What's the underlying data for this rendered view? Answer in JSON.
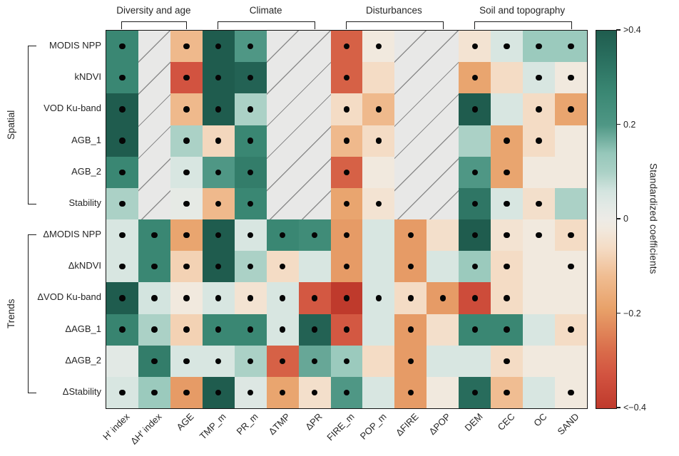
{
  "colorbar": {
    "title": "Standardized coefficients",
    "ticks": [
      ">0.4",
      "0.2",
      "0",
      "−0.2",
      "<−0.4"
    ]
  },
  "chart_data": {
    "type": "heatmap",
    "rows": [
      "MODIS NPP",
      "kNDVI",
      "VOD Ku-band",
      "AGB_1",
      "AGB_2",
      "Stability",
      "ΔMODIS NPP",
      "ΔkNDVI",
      "ΔVOD Ku-band",
      "ΔAGB_1",
      "ΔAGB_2",
      "ΔStability"
    ],
    "columns": [
      "H′ index",
      "ΔH′ index",
      "AGE",
      "TMP_m",
      "PR_m",
      "ΔTMP",
      "ΔPR",
      "FIRE_m",
      "POP_m",
      "ΔFIRE",
      "ΔPOP",
      "DEM",
      "CEC",
      "OC",
      "SAND"
    ],
    "row_groups": [
      {
        "label": "Spatial",
        "from": 0,
        "to": 5
      },
      {
        "label": "Trends",
        "from": 6,
        "to": 11
      }
    ],
    "column_groups": [
      {
        "label": "Diversity and age",
        "from": 0,
        "to": 2
      },
      {
        "label": "Climate",
        "from": 3,
        "to": 6
      },
      {
        "label": "Disturbances",
        "from": 7,
        "to": 10
      },
      {
        "label": "Soil and topography",
        "from": 11,
        "to": 14
      }
    ],
    "value_scale": {
      "label": "Standardized coefficients",
      "min": -0.4,
      "max": 0.4
    },
    "null_meaning": "hatched cell (predictor not applicable)",
    "values": [
      [
        0.27,
        null,
        -0.13,
        0.42,
        0.2,
        null,
        null,
        -0.3,
        -0.02,
        null,
        null,
        -0.04,
        0.05,
        0.13,
        0.13
      ],
      [
        0.27,
        null,
        -0.33,
        0.42,
        0.38,
        null,
        null,
        -0.3,
        -0.06,
        null,
        null,
        -0.18,
        -0.06,
        0.05,
        -0.02
      ],
      [
        0.42,
        null,
        -0.13,
        0.42,
        0.1,
        null,
        null,
        -0.06,
        -0.13,
        null,
        null,
        0.42,
        0.05,
        -0.06,
        -0.18
      ],
      [
        0.42,
        null,
        0.1,
        -0.07,
        0.27,
        null,
        null,
        -0.13,
        -0.06,
        null,
        null,
        0.1,
        -0.18,
        -0.06,
        -0.02
      ],
      [
        0.27,
        null,
        0.05,
        0.2,
        0.3,
        null,
        null,
        -0.3,
        -0.02,
        null,
        null,
        0.2,
        -0.18,
        -0.02,
        -0.02
      ],
      [
        0.1,
        null,
        0.02,
        -0.13,
        0.27,
        null,
        null,
        -0.18,
        -0.04,
        null,
        null,
        0.32,
        0.05,
        -0.05,
        0.1
      ],
      [
        0.05,
        0.27,
        -0.18,
        0.42,
        0.05,
        0.27,
        0.25,
        -0.2,
        0.05,
        -0.2,
        -0.05,
        0.42,
        -0.04,
        -0.02,
        -0.06
      ],
      [
        0.05,
        0.27,
        -0.08,
        0.42,
        0.1,
        -0.06,
        0.05,
        -0.2,
        0.05,
        -0.2,
        0.05,
        0.13,
        -0.06,
        -0.02,
        -0.02
      ],
      [
        0.42,
        0.06,
        -0.02,
        0.05,
        -0.04,
        0.05,
        -0.32,
        -0.43,
        0.05,
        -0.06,
        -0.2,
        -0.35,
        -0.06,
        -0.02,
        -0.02
      ],
      [
        0.28,
        0.1,
        -0.08,
        0.27,
        0.27,
        0.05,
        0.38,
        -0.32,
        0.05,
        -0.2,
        -0.05,
        0.27,
        0.27,
        0.05,
        -0.06
      ],
      [
        0.03,
        0.3,
        0.05,
        0.05,
        0.1,
        -0.3,
        0.18,
        0.13,
        -0.06,
        -0.2,
        0.05,
        0.05,
        -0.06,
        -0.02,
        -0.02
      ],
      [
        0.05,
        0.13,
        -0.2,
        0.4,
        0.04,
        -0.18,
        -0.05,
        0.2,
        0.05,
        -0.2,
        -0.02,
        0.35,
        -0.12,
        0.05,
        -0.02
      ]
    ],
    "significant_dots": [
      [
        1,
        0,
        1,
        1,
        1,
        0,
        0,
        1,
        1,
        0,
        0,
        1,
        1,
        1,
        1
      ],
      [
        1,
        0,
        1,
        1,
        1,
        0,
        0,
        1,
        0,
        0,
        0,
        1,
        0,
        1,
        1
      ],
      [
        1,
        0,
        1,
        1,
        1,
        0,
        0,
        1,
        1,
        0,
        0,
        1,
        0,
        1,
        1
      ],
      [
        1,
        0,
        1,
        1,
        1,
        0,
        0,
        1,
        1,
        0,
        0,
        0,
        1,
        1,
        0
      ],
      [
        1,
        0,
        1,
        1,
        1,
        0,
        0,
        1,
        0,
        0,
        0,
        1,
        1,
        0,
        0
      ],
      [
        1,
        0,
        1,
        1,
        1,
        0,
        0,
        1,
        1,
        0,
        0,
        1,
        1,
        1,
        0
      ],
      [
        1,
        1,
        1,
        1,
        1,
        1,
        1,
        1,
        0,
        1,
        0,
        1,
        1,
        1,
        1
      ],
      [
        1,
        1,
        1,
        1,
        1,
        1,
        0,
        1,
        0,
        1,
        0,
        1,
        1,
        0,
        1
      ],
      [
        1,
        1,
        1,
        1,
        1,
        1,
        1,
        1,
        1,
        1,
        1,
        1,
        1,
        0,
        0
      ],
      [
        1,
        1,
        1,
        1,
        1,
        1,
        1,
        1,
        0,
        1,
        0,
        1,
        1,
        0,
        1
      ],
      [
        0,
        1,
        1,
        1,
        1,
        1,
        1,
        1,
        0,
        1,
        0,
        0,
        1,
        0,
        0
      ],
      [
        1,
        1,
        1,
        1,
        1,
        1,
        1,
        1,
        0,
        1,
        0,
        1,
        1,
        0,
        1
      ]
    ]
  },
  "palette": {
    "stops": [
      [
        -0.4,
        "#bf3a2c"
      ],
      [
        -0.33,
        "#d25340"
      ],
      [
        -0.28,
        "#d96b4a"
      ],
      [
        -0.19,
        "#e8a169"
      ],
      [
        -0.12,
        "#f0bd92"
      ],
      [
        -0.06,
        "#f4dcc5"
      ],
      [
        -0.02,
        "#f1e9de"
      ],
      [
        0.0,
        "#edebe6"
      ],
      [
        0.03,
        "#e2e9e5"
      ],
      [
        0.06,
        "#d3e4df"
      ],
      [
        0.1,
        "#abd1c6"
      ],
      [
        0.14,
        "#96c7ba"
      ],
      [
        0.2,
        "#4f9785"
      ],
      [
        0.27,
        "#3a8773"
      ],
      [
        0.34,
        "#2a6f5f"
      ],
      [
        0.4,
        "#1f5c4e"
      ]
    ],
    "hatch_bg": "#e8e8e7",
    "hatch_line": "#8d8d8d",
    "dot": "#050505"
  }
}
